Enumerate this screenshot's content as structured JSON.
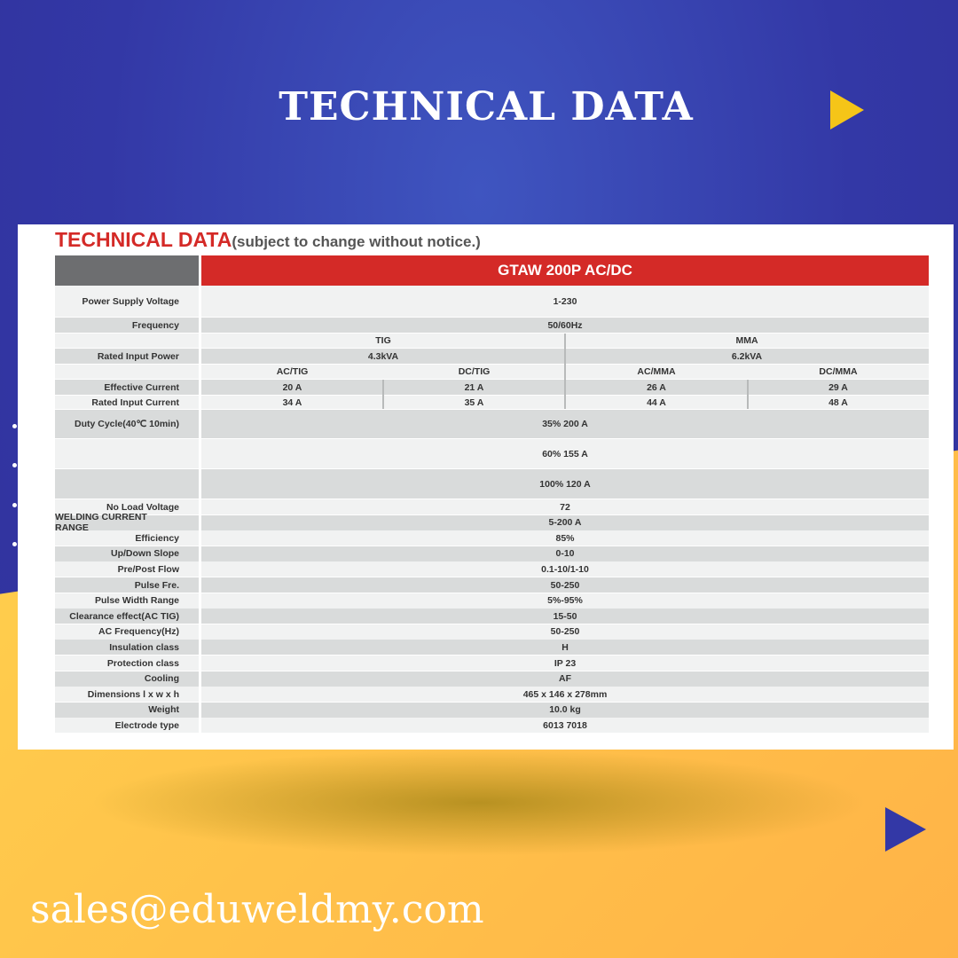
{
  "page": {
    "title": "TECHNICAL DATA",
    "email": "sales@eduweldmy.com"
  },
  "colors": {
    "blue": "#3338a6",
    "yellow": "#ffc94a",
    "red": "#d42a27",
    "triangle": "#f5c518"
  },
  "card": {
    "heading": "TECHNICAL DATA",
    "subheading": "(subject to change without notice.)",
    "model": "GTAW 200P AC/DC"
  },
  "table": {
    "power_supply": {
      "label": "Power Supply Voltage",
      "value": "1-230"
    },
    "frequency": {
      "label": "Frequency",
      "value": "50/60Hz"
    },
    "modes": [
      "TIG",
      "MMA"
    ],
    "rated_input_power": {
      "label": "Rated Input Power",
      "values": [
        "4.3kVA",
        "6.2kVA"
      ]
    },
    "submodes": [
      "AC/TIG",
      "DC/TIG",
      "AC/MMA",
      "DC/MMA"
    ],
    "effective_current": {
      "label": "Effective Current",
      "values": [
        "20 A",
        "21 A",
        "26 A",
        "29 A"
      ]
    },
    "rated_input_current": {
      "label": "Rated Input Current",
      "values": [
        "34 A",
        "35 A",
        "44 A",
        "48 A"
      ]
    },
    "duty_cycle": {
      "label": "Duty Cycle(40℃ 10min)",
      "values": [
        "35% 200 A",
        "60% 155 A",
        "100% 120 A"
      ]
    },
    "rows": [
      {
        "label": "No Load Voltage",
        "value": "72"
      },
      {
        "label": "WELDING CURRENT RANGE",
        "value": "5-200 A"
      },
      {
        "label": "Efficiency",
        "value": "85%"
      },
      {
        "label": "Up/Down Slope",
        "value": "0-10"
      },
      {
        "label": "Pre/Post Flow",
        "value": "0.1-10/1-10"
      },
      {
        "label": "Pulse Fre.",
        "value": "50-250"
      },
      {
        "label": "Pulse Width Range",
        "value": "5%-95%"
      },
      {
        "label": "Clearance effect(AC TIG)",
        "value": "15-50"
      },
      {
        "label": "AC Frequency(Hz)",
        "value": "50-250"
      },
      {
        "label": "Insulation class",
        "value": "H"
      },
      {
        "label": "Protection class",
        "value": "IP 23"
      },
      {
        "label": "Cooling",
        "value": "AF"
      },
      {
        "label": "Dimensions l x w x h",
        "value": "465 x 146 x 278mm"
      },
      {
        "label": "Weight",
        "value": "10.0 kg"
      },
      {
        "label": "Electrode type",
        "value": "6013 7018"
      }
    ]
  }
}
